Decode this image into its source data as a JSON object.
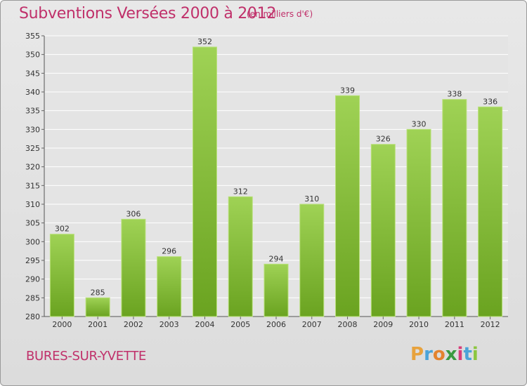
{
  "header": {
    "title": "Subventions Versées 2000 à 2012",
    "unit": "(en milliers d'€)"
  },
  "footer": {
    "city": "BURES-SUR-YVETTE",
    "logo_letters": [
      "P",
      "r",
      "o",
      "x",
      "i",
      "t",
      "i"
    ],
    "logo_colors": [
      "#e8a23c",
      "#4aa3d8",
      "#e4832e",
      "#3a9a3f",
      "#d83d7a",
      "#4aa3d8",
      "#8cc63f"
    ]
  },
  "colors": {
    "accent": "#c0306a",
    "bar_light": "#9fd255",
    "bar_dark": "#6aa320",
    "grid": "#ffffff"
  },
  "chart_data": {
    "type": "bar",
    "categories": [
      "2000",
      "2001",
      "2002",
      "2003",
      "2004",
      "2005",
      "2006",
      "2007",
      "2008",
      "2009",
      "2010",
      "2011",
      "2012"
    ],
    "values": [
      302,
      285,
      306,
      296,
      352,
      312,
      294,
      310,
      339,
      326,
      330,
      338,
      336
    ],
    "ylim": [
      280,
      355
    ],
    "yticks": [
      280,
      285,
      290,
      295,
      300,
      305,
      310,
      315,
      320,
      325,
      330,
      335,
      340,
      345,
      350,
      355
    ],
    "grid": true
  }
}
